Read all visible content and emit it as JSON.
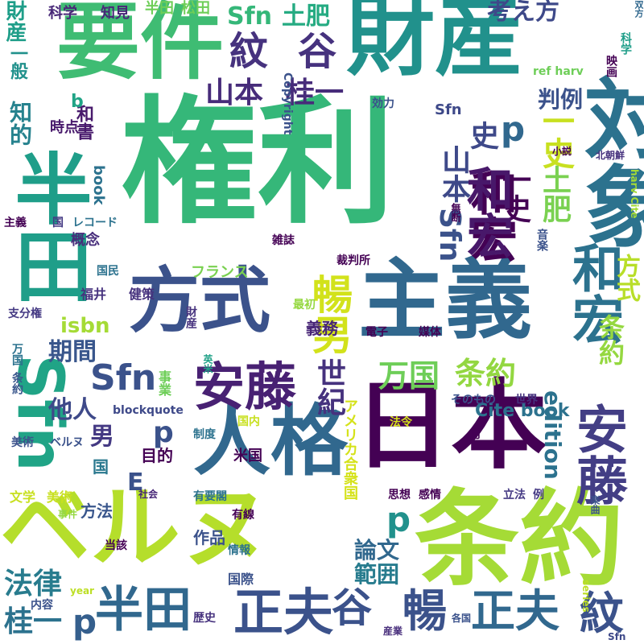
{
  "words": [
    {
      "text": "権利",
      "color": "#35b779"
    },
    {
      "text": "財産",
      "color": "#21918c"
    },
    {
      "text": "要件",
      "color": "#3fbc73"
    },
    {
      "text": "対象",
      "color": "#2c728e"
    },
    {
      "text": "主義",
      "color": "#31688e"
    },
    {
      "text": "日本",
      "color": "#440154"
    },
    {
      "text": "条約",
      "color": "#a5db36"
    },
    {
      "text": "ベルヌ",
      "color": "#b5de2b"
    },
    {
      "text": "人格",
      "color": "#31688e"
    },
    {
      "text": "方式",
      "color": "#3b528b"
    },
    {
      "text": "半田",
      "color": "#1f9e89"
    },
    {
      "text": "Sfn",
      "color": "#20a486"
    },
    {
      "text": "安藤",
      "color": "#482173"
    },
    {
      "text": "安藤",
      "color": "#433e85"
    },
    {
      "text": "和宏",
      "color": "#2c728e"
    },
    {
      "text": "和宏",
      "color": "#440154"
    },
    {
      "text": "Sfn",
      "color": "#3b528b"
    },
    {
      "text": "正夫",
      "color": "#3b528b"
    },
    {
      "text": "谷",
      "color": "#3b528b"
    },
    {
      "text": "半田",
      "color": "#31688e"
    },
    {
      "text": "正夫",
      "color": "#31688e"
    },
    {
      "text": "暢",
      "color": "#3b528b"
    },
    {
      "text": "紋",
      "color": "#3b528b"
    },
    {
      "text": "暢男",
      "color": "#d2e21b"
    },
    {
      "text": "紋",
      "color": "#46327e"
    },
    {
      "text": "谷",
      "color": "#46327e"
    },
    {
      "text": "Sfn",
      "color": "#35b779"
    },
    {
      "text": "土肥",
      "color": "#25ab82"
    },
    {
      "text": "考え方",
      "color": "#3e4989"
    },
    {
      "text": "判例",
      "color": "#3b528b"
    },
    {
      "text": "山本",
      "color": "#472c7a"
    },
    {
      "text": "桂一",
      "color": "#472c7a"
    },
    {
      "text": "条約",
      "color": "#93d741"
    },
    {
      "text": "万国",
      "color": "#6ece58"
    },
    {
      "text": "世紀",
      "color": "#46327e"
    },
    {
      "text": "Cite book",
      "color": "#2c728e"
    },
    {
      "text": "論文",
      "color": "#31688e"
    },
    {
      "text": "範囲",
      "color": "#287c8e"
    },
    {
      "text": "法律",
      "color": "#287c8e"
    },
    {
      "text": "桂一",
      "color": "#2c728e"
    },
    {
      "text": "期間",
      "color": "#39568c"
    },
    {
      "text": "isbn",
      "color": "#a5db36"
    },
    {
      "text": "他人",
      "color": "#3e4989"
    },
    {
      "text": "男",
      "color": "#443983"
    },
    {
      "text": "p",
      "color": "#3b528b"
    },
    {
      "text": "p",
      "color": "#21918c"
    },
    {
      "text": "p",
      "color": "#355f8d"
    },
    {
      "text": "Sfn",
      "color": "#3b528b"
    },
    {
      "text": "山本",
      "color": "#3e4989"
    },
    {
      "text": "史",
      "color": "#3e4989"
    },
    {
      "text": "一史",
      "color": "#c8e020"
    },
    {
      "text": "一史",
      "color": "#440154"
    },
    {
      "text": "土肥",
      "color": "#7ad151"
    },
    {
      "text": "和宏",
      "color": "#48186a"
    },
    {
      "text": "p",
      "color": "#31688e"
    },
    {
      "text": "E",
      "color": "#3b528b"
    },
    {
      "text": "edition",
      "color": "#2c728e"
    },
    {
      "text": "条約",
      "color": "#95d840"
    },
    {
      "text": "方式",
      "color": "#b8de29"
    },
    {
      "text": "アメリカ合衆国",
      "color": "#d5e21a"
    },
    {
      "text": "義務",
      "color": "#482677"
    },
    {
      "text": "国",
      "color": "#2a788e"
    },
    {
      "text": "方法",
      "color": "#39568c"
    },
    {
      "text": "作品",
      "color": "#3b528b"
    },
    {
      "text": "目的",
      "color": "#440154"
    },
    {
      "text": "米国",
      "color": "#440154"
    },
    {
      "text": "科学",
      "color": "#482878"
    },
    {
      "text": "知見",
      "color": "#482878"
    },
    {
      "text": "半田",
      "color": "#6ece58"
    },
    {
      "text": "松田",
      "color": "#6ece58"
    },
    {
      "text": "財産",
      "color": "#1f9e89"
    },
    {
      "text": "一般",
      "color": "#21918c"
    },
    {
      "text": "知的",
      "color": "#26828e"
    },
    {
      "text": "和書",
      "color": "#481a6c"
    },
    {
      "text": "b",
      "color": "#20a486"
    },
    {
      "text": "時点",
      "color": "#481a6c"
    },
    {
      "text": "Copyright",
      "color": "#3b528b"
    },
    {
      "text": "効力",
      "color": "#3b528b"
    },
    {
      "text": "ref harv",
      "color": "#6ece58"
    },
    {
      "text": "Sfn",
      "color": "#3e4989"
    },
    {
      "text": "book",
      "color": "#2c728e"
    },
    {
      "text": "国",
      "color": "#443983"
    },
    {
      "text": "レコード",
      "color": "#2c728e"
    },
    {
      "text": "主義",
      "color": "#440154"
    },
    {
      "text": "概念",
      "color": "#472d7b"
    },
    {
      "text": "雑誌",
      "color": "#440154"
    },
    {
      "text": "裁判所",
      "color": "#440154"
    },
    {
      "text": "フランス",
      "color": "#7ad151"
    },
    {
      "text": "国民",
      "color": "#2c728e"
    },
    {
      "text": "福井",
      "color": "#46327e"
    },
    {
      "text": "健策",
      "color": "#46327e"
    },
    {
      "text": "支分権",
      "color": "#443983"
    },
    {
      "text": "最初",
      "color": "#95d840"
    },
    {
      "text": "万国",
      "color": "#2c728e"
    },
    {
      "text": "条約",
      "color": "#39568c"
    },
    {
      "text": "財産",
      "color": "#46327e"
    },
    {
      "text": "英米",
      "color": "#1fa187"
    },
    {
      "text": "電子",
      "color": "#440154"
    },
    {
      "text": "媒体",
      "color": "#440154"
    },
    {
      "text": "事業",
      "color": "#6ece58"
    },
    {
      "text": "blockquote",
      "color": "#3e4989"
    },
    {
      "text": "そのもの",
      "color": "#3b528b"
    },
    {
      "text": "世界",
      "color": "#46327e"
    },
    {
      "text": "美術",
      "color": "#3b528b"
    },
    {
      "text": "ベルヌ",
      "color": "#3b528b"
    },
    {
      "text": "制度",
      "color": "#2c728e"
    },
    {
      "text": "国内",
      "color": "#c8e020"
    },
    {
      "text": "法令",
      "color": "#d5e21a"
    },
    {
      "text": "月",
      "color": "#440154"
    },
    {
      "text": "社会",
      "color": "#482878"
    },
    {
      "text": "文学",
      "color": "#c8e020"
    },
    {
      "text": "美術",
      "color": "#c8e020"
    },
    {
      "text": "思想",
      "color": "#440154"
    },
    {
      "text": "感情",
      "color": "#440154"
    },
    {
      "text": "立法",
      "color": "#443983"
    },
    {
      "text": "例",
      "color": "#443983"
    },
    {
      "text": "有要閣",
      "color": "#2c728e"
    },
    {
      "text": "事件",
      "color": "#95d840"
    },
    {
      "text": "有線",
      "color": "#440154"
    },
    {
      "text": "楽曲",
      "color": "#3b528b"
    },
    {
      "text": "当該",
      "color": "#440154"
    },
    {
      "text": "情報",
      "color": "#2c728e"
    },
    {
      "text": "国際",
      "color": "#3b528b"
    },
    {
      "text": "内容",
      "color": "#3b528b"
    },
    {
      "text": "year",
      "color": "#bddf26"
    },
    {
      "text": "歴史",
      "color": "#46327e"
    },
    {
      "text": "各国",
      "color": "#3b528b"
    },
    {
      "text": "産業",
      "color": "#472d7b"
    },
    {
      "text": "series",
      "color": "#bddf26"
    },
    {
      "text": "双方",
      "color": "#31688e"
    },
    {
      "text": "映画",
      "color": "#440154"
    },
    {
      "text": "科学",
      "color": "#1f9e89"
    },
    {
      "text": "小説",
      "color": "#440154"
    },
    {
      "text": "北朝鮮",
      "color": "#46327e"
    },
    {
      "text": "harv Cite",
      "color": "#a5db36"
    },
    {
      "text": "無断",
      "color": "#440154"
    },
    {
      "text": "音楽",
      "color": "#3b528b"
    },
    {
      "text": "Sfn",
      "color": "#3e4989"
    }
  ]
}
